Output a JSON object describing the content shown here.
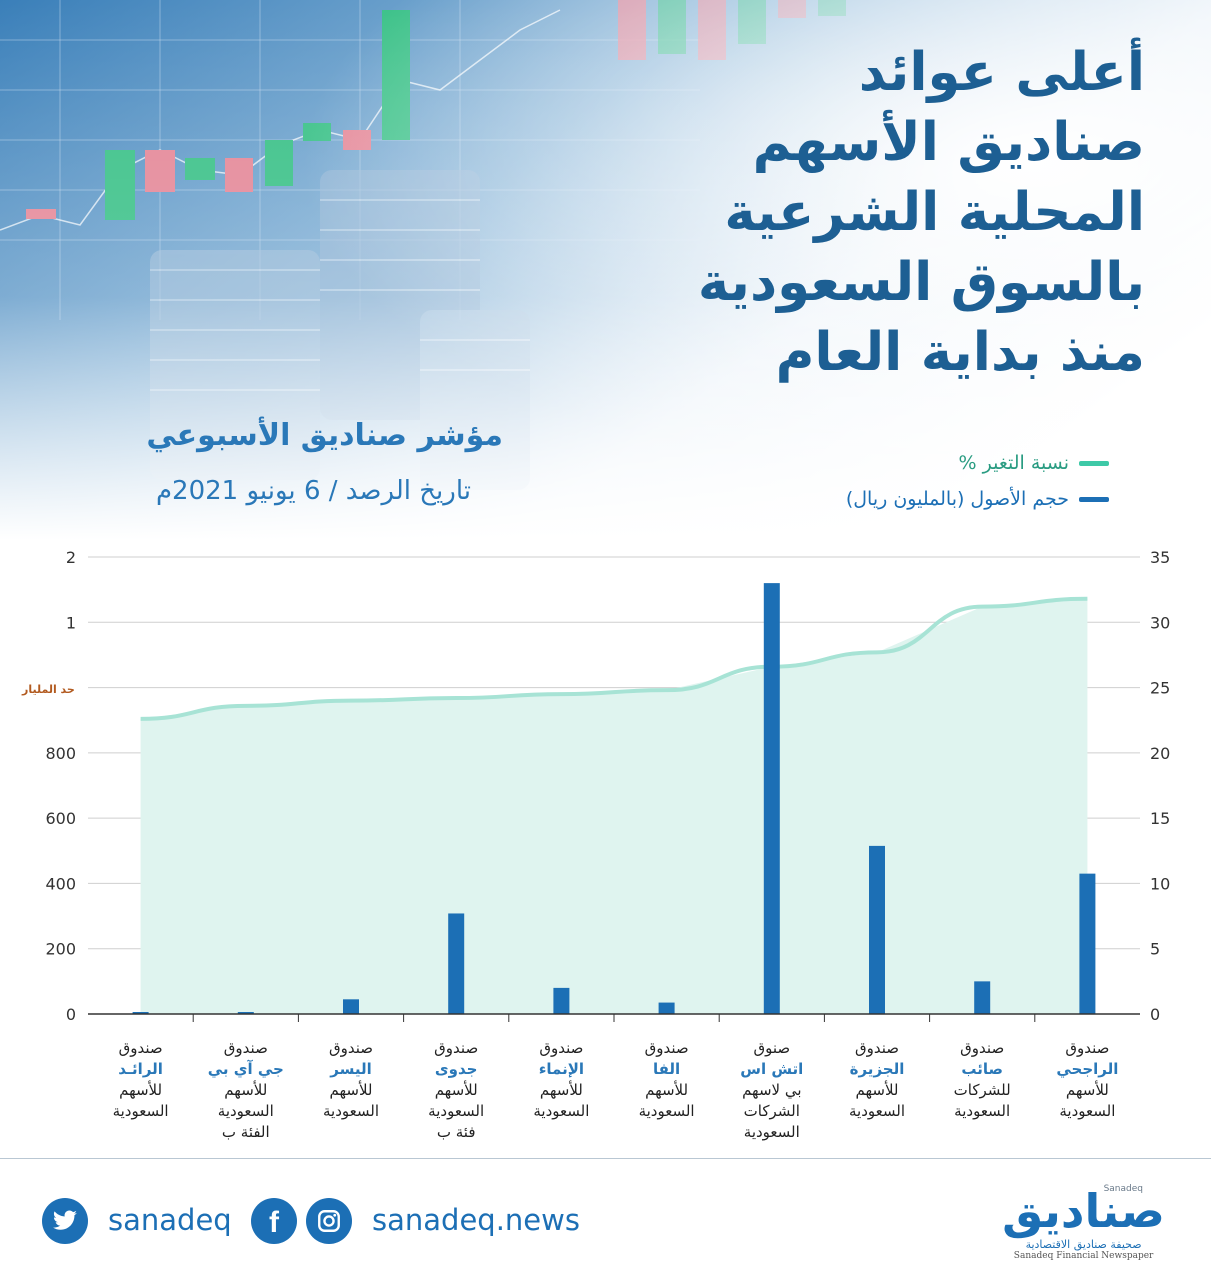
{
  "title_lines": [
    "أعلى عوائد",
    "صناديق الأسهم",
    "المحلية الشرعية",
    "بالسوق السعودية",
    "منذ بداية العام"
  ],
  "subtitle": "مؤشر صناديق الأسبوعي",
  "date_text": "تاريخ الرصد / 6 يونيو 2021م",
  "legend": [
    {
      "label": "نسبة التغير %",
      "color": "#3ec9a7"
    },
    {
      "label": "حجم الأصول (بالمليون ريال)",
      "color": "#1c6fb5"
    }
  ],
  "billion_note": "حد المليار",
  "footer": {
    "twitter_handle": "sanadeq",
    "website": "sanadeq.news",
    "logo_main": "صناديق",
    "logo_small": "Sanadeq",
    "logo_ar": "صحيفة صناديق الاقتصادية",
    "logo_en": "Sanadeq Financial Newspaper"
  },
  "chart_data": {
    "type": "bar",
    "left_axis_ticks": [
      "0",
      "200",
      "400",
      "600",
      "800",
      "",
      "1",
      "2"
    ],
    "right_axis_ticks": [
      "0",
      "5",
      "10",
      "15",
      "20",
      "25",
      "30",
      "35"
    ],
    "right_axis_range": [
      0,
      35
    ],
    "categories": [
      {
        "l1": "صندوق",
        "l2": "الراجحي",
        "l3": "للأسهم",
        "l4": "السعودية",
        "l5": ""
      },
      {
        "l1": "صندوق",
        "l2": "صائب",
        "l3": "للشركات",
        "l4": "السعودية",
        "l5": ""
      },
      {
        "l1": "صندوق",
        "l2": "الجزيرة",
        "l3": "للأسهم",
        "l4": "السعودية",
        "l5": ""
      },
      {
        "l1": "صنوق",
        "l2": "اتش اس",
        "l3": "بي لاسهم",
        "l4": "الشركات",
        "l5": "السعودية"
      },
      {
        "l1": "صندوق",
        "l2": "الفا",
        "l3": "للأسهم",
        "l4": "السعودية",
        "l5": ""
      },
      {
        "l1": "صندوق",
        "l2": "الإنماء",
        "l3": "للأسهم",
        "l4": "السعودية",
        "l5": ""
      },
      {
        "l1": "صندوق",
        "l2": "جدوى",
        "l3": "للأسهم",
        "l4": "السعودية",
        "l5": "فئة ب"
      },
      {
        "l1": "صندوق",
        "l2": "اليسر",
        "l3": "للأسهم",
        "l4": "السعودية",
        "l5": ""
      },
      {
        "l1": "صندوق",
        "l2": "جي آي بي",
        "l3": "للأسهم",
        "l4": "السعودية",
        "l5": "الفئة ب"
      },
      {
        "l1": "صندوق",
        "l2": "الرائـد",
        "l3": "للأسهم",
        "l4": "السعودية",
        "l5": ""
      }
    ],
    "series": [
      {
        "name": "نسبة التغير %",
        "axis": "right",
        "kind": "area",
        "values": [
          31.8,
          31.2,
          27.7,
          26.6,
          24.8,
          24.5,
          24.2,
          24.0,
          23.6,
          22.6
        ]
      },
      {
        "name": "حجم الأصول (بالمليون ريال)",
        "axis": "left",
        "kind": "bar",
        "values": [
          430,
          100,
          515,
          1600,
          35,
          80,
          308,
          45,
          4,
          2
        ]
      }
    ]
  }
}
